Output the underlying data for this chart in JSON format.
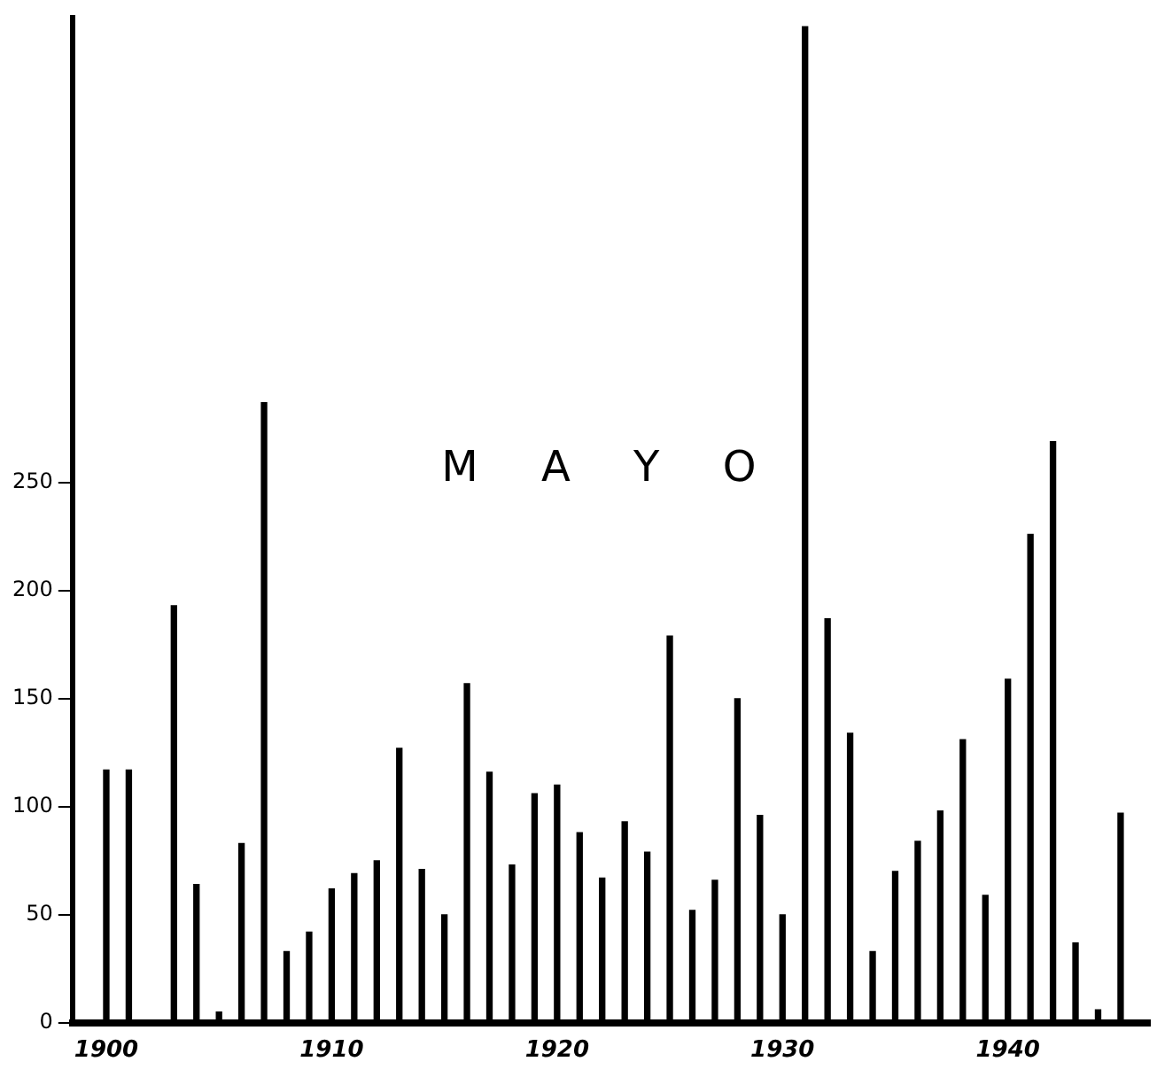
{
  "chart_data": {
    "type": "bar",
    "title": "M A Y O",
    "x": [
      1900,
      1901,
      1902,
      1903,
      1904,
      1905,
      1906,
      1907,
      1908,
      1909,
      1910,
      1911,
      1912,
      1913,
      1914,
      1915,
      1916,
      1917,
      1918,
      1919,
      1920,
      1921,
      1922,
      1923,
      1924,
      1925,
      1926,
      1927,
      1928,
      1929,
      1930,
      1931,
      1932,
      1933,
      1934,
      1935,
      1936,
      1937,
      1938,
      1939,
      1940,
      1941,
      1942,
      1943,
      1944,
      1945
    ],
    "series": [
      {
        "color": "#000000",
        "values": [
          117,
          117,
          0,
          193,
          64,
          5,
          83,
          287,
          33,
          42,
          62,
          69,
          75,
          127,
          71,
          50,
          157,
          116,
          73,
          106,
          110,
          88,
          67,
          93,
          79,
          179,
          52,
          66,
          150,
          96,
          50,
          461,
          187,
          134,
          33,
          70,
          84,
          98,
          131,
          59,
          159,
          226,
          269,
          37,
          6,
          97
        ]
      }
    ],
    "xlim": [
      1898.5,
      1946.3
    ],
    "ylim": [
      0,
      465
    ],
    "xticks": [
      1900,
      1910,
      1920,
      1930,
      1940
    ],
    "yticks": [
      0,
      50,
      100,
      150,
      200,
      250
    ],
    "grid": false,
    "legend": false
  }
}
